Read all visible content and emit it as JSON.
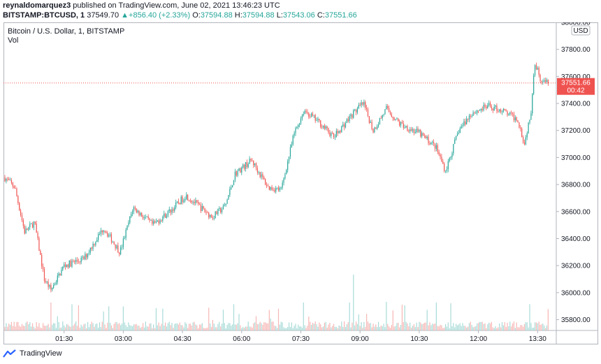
{
  "header": {
    "author": "reynaldomarquez3",
    "published_text": " published on TradingView.com, June 02, 2021 13:46:23 UTC",
    "symbol": "BITSTAMP:BTCUSD, 1",
    "last": "37549.70",
    "change": "+856.40 (+2.33%)",
    "o_label": "O:",
    "o_value": "37594.88",
    "h_label": "H:",
    "h_value": "37594.88",
    "l_label": "L:",
    "l_value": "37543.06",
    "c_label": "C:",
    "c_value": "37551.66"
  },
  "chart_data": {
    "type": "candlestick",
    "title": "Bitcoin / U.S. Dollar, 1, BITSTAMP",
    "volume_label": "Vol",
    "currency": "USD",
    "ylim": [
      35720,
      38000
    ],
    "yticks": [
      35800,
      36000,
      36200,
      36400,
      36600,
      36800,
      37000,
      37200,
      37400,
      37600,
      37800,
      38000
    ],
    "xtick_labels": [
      "01:30",
      "03:00",
      "04:30",
      "06:00",
      "07:30",
      "09:00",
      "10:30",
      "12:00",
      "13:30"
    ],
    "last_price_label": "37551.66",
    "countdown": "00:42",
    "grid": false,
    "colors": {
      "up": "#26a69a",
      "down": "#ef5350",
      "vol_up": "#a8dbd7",
      "vol_down": "#f6b7b5",
      "text": "#131722"
    },
    "path_keypoints": [
      {
        "time": "00:00",
        "price": 36850
      },
      {
        "time": "00:15",
        "price": 36780
      },
      {
        "time": "00:30",
        "price": 36450
      },
      {
        "time": "00:45",
        "price": 36520
      },
      {
        "time": "01:00",
        "price": 36100
      },
      {
        "time": "01:10",
        "price": 36020
      },
      {
        "time": "01:30",
        "price": 36200
      },
      {
        "time": "02:00",
        "price": 36250
      },
      {
        "time": "02:30",
        "price": 36480
      },
      {
        "time": "02:55",
        "price": 36300
      },
      {
        "time": "03:15",
        "price": 36630
      },
      {
        "time": "03:45",
        "price": 36500
      },
      {
        "time": "04:15",
        "price": 36620
      },
      {
        "time": "04:35",
        "price": 36720
      },
      {
        "time": "05:15",
        "price": 36560
      },
      {
        "time": "05:35",
        "price": 36640
      },
      {
        "time": "05:50",
        "price": 36880
      },
      {
        "time": "06:15",
        "price": 36980
      },
      {
        "time": "06:40",
        "price": 36780
      },
      {
        "time": "07:00",
        "price": 36760
      },
      {
        "time": "07:20",
        "price": 37180
      },
      {
        "time": "07:35",
        "price": 37350
      },
      {
        "time": "08:00",
        "price": 37250
      },
      {
        "time": "08:20",
        "price": 37150
      },
      {
        "time": "08:50",
        "price": 37330
      },
      {
        "time": "09:05",
        "price": 37400
      },
      {
        "time": "09:20",
        "price": 37200
      },
      {
        "time": "09:40",
        "price": 37360
      },
      {
        "time": "10:00",
        "price": 37250
      },
      {
        "time": "10:30",
        "price": 37180
      },
      {
        "time": "10:55",
        "price": 37080
      },
      {
        "time": "11:10",
        "price": 36900
      },
      {
        "time": "11:30",
        "price": 37200
      },
      {
        "time": "11:50",
        "price": 37330
      },
      {
        "time": "12:15",
        "price": 37380
      },
      {
        "time": "12:35",
        "price": 37350
      },
      {
        "time": "13:00",
        "price": 37280
      },
      {
        "time": "13:10",
        "price": 37100
      },
      {
        "time": "13:20",
        "price": 37350
      },
      {
        "time": "13:25",
        "price": 37700
      },
      {
        "time": "13:30",
        "price": 37650
      },
      {
        "time": "13:36",
        "price": 37560
      },
      {
        "time": "13:46",
        "price": 37552
      }
    ]
  },
  "branding": {
    "name": "TradingView"
  }
}
